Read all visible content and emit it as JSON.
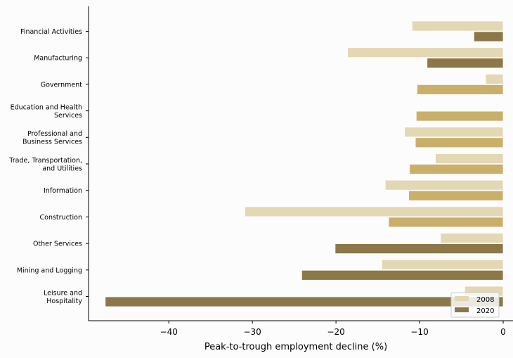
{
  "chart_data": {
    "type": "bar",
    "orientation": "horizontal",
    "xlabel": "Peak-to-trough employment decline (%)",
    "xlim": [
      -49.6,
      0
    ],
    "xticks": [
      -40,
      -30,
      -20,
      -10,
      0
    ],
    "xtick_labels": [
      "−40",
      "−30",
      "−20",
      "−10",
      "0"
    ],
    "categories": [
      [
        "Financial Activities"
      ],
      [
        "Manufacturing"
      ],
      [
        "Government"
      ],
      [
        "Education and Health",
        "Services"
      ],
      [
        "Professional and",
        "Business Services"
      ],
      [
        "Trade, Transportation,",
        "and Utilities"
      ],
      [
        "Information"
      ],
      [
        "Construction"
      ],
      [
        "Other Services"
      ],
      [
        "Mining and Logging"
      ],
      [
        "Leisure and",
        "Hospitality"
      ]
    ],
    "series": [
      {
        "name": "2008",
        "values": [
          -10.9,
          -18.6,
          -2.1,
          0,
          -11.8,
          -8.1,
          -14.1,
          -30.9,
          -7.5,
          -14.5,
          -4.6
        ]
      },
      {
        "name": "2020",
        "values": [
          -3.5,
          -9.1,
          -10.3,
          -10.4,
          -10.5,
          -11.2,
          -11.3,
          -13.7,
          -20.1,
          -24.1,
          -47.6
        ]
      }
    ],
    "series_2020_color_levels": [
      "dark",
      "dark",
      "medium",
      "medium",
      "medium",
      "medium",
      "medium",
      "medium",
      "dark",
      "dark",
      "dark"
    ],
    "colors": {
      "2008": "#e3d7b4",
      "2020_dark": "#8b7748",
      "2020_medium": "#c9af6a",
      "legend_2020": "#8b7748"
    },
    "legend": {
      "position": "bottom-right",
      "entries": [
        "2008",
        "2020"
      ]
    },
    "grid": false
  }
}
